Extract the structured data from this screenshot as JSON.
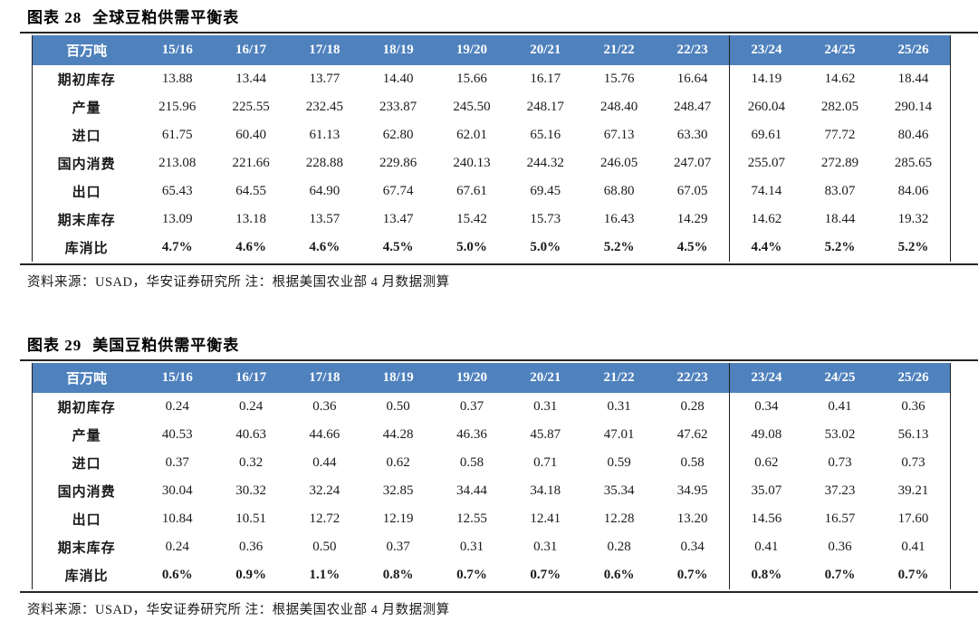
{
  "colors": {
    "header_bg": "#4F81BD",
    "header_text": "#FFFFFF",
    "rule": "#262626",
    "body_text": "#1A1A1A"
  },
  "tables": [
    {
      "figure_label": "图表 28",
      "title": "全球豆粕供需平衡表",
      "unit": "百万吨",
      "columns": [
        "15/16",
        "16/17",
        "17/18",
        "18/19",
        "19/20",
        "20/21",
        "21/22",
        "22/23",
        "23/24",
        "24/25",
        "25/26"
      ],
      "divider_index": 8,
      "rows": [
        {
          "label": "期初库存",
          "emphasis": false,
          "values": [
            "13.88",
            "13.44",
            "13.77",
            "14.40",
            "15.66",
            "16.17",
            "15.76",
            "16.64",
            "14.19",
            "14.62",
            "18.44"
          ]
        },
        {
          "label": "产量",
          "emphasis": false,
          "values": [
            "215.96",
            "225.55",
            "232.45",
            "233.87",
            "245.50",
            "248.17",
            "248.40",
            "248.47",
            "260.04",
            "282.05",
            "290.14"
          ]
        },
        {
          "label": "进口",
          "emphasis": false,
          "values": [
            "61.75",
            "60.40",
            "61.13",
            "62.80",
            "62.01",
            "65.16",
            "67.13",
            "63.30",
            "69.61",
            "77.72",
            "80.46"
          ]
        },
        {
          "label": "国内消费",
          "emphasis": false,
          "values": [
            "213.08",
            "221.66",
            "228.88",
            "229.86",
            "240.13",
            "244.32",
            "246.05",
            "247.07",
            "255.07",
            "272.89",
            "285.65"
          ]
        },
        {
          "label": "出口",
          "emphasis": false,
          "values": [
            "65.43",
            "64.55",
            "64.90",
            "67.74",
            "67.61",
            "69.45",
            "68.80",
            "67.05",
            "74.14",
            "83.07",
            "84.06"
          ]
        },
        {
          "label": "期末库存",
          "emphasis": false,
          "values": [
            "13.09",
            "13.18",
            "13.57",
            "13.47",
            "15.42",
            "15.73",
            "16.43",
            "14.29",
            "14.62",
            "18.44",
            "19.32"
          ]
        },
        {
          "label": "库消比",
          "emphasis": true,
          "values": [
            "4.7%",
            "4.6%",
            "4.6%",
            "4.5%",
            "5.0%",
            "5.0%",
            "5.2%",
            "4.5%",
            "4.4%",
            "5.2%",
            "5.2%"
          ]
        }
      ],
      "source": "资料来源：USAD，华安证券研究所 注：根据美国农业部 4 月数据测算"
    },
    {
      "figure_label": "图表 29",
      "title": "美国豆粕供需平衡表",
      "unit": "百万吨",
      "columns": [
        "15/16",
        "16/17",
        "17/18",
        "18/19",
        "19/20",
        "20/21",
        "21/22",
        "22/23",
        "23/24",
        "24/25",
        "25/26"
      ],
      "divider_index": 8,
      "rows": [
        {
          "label": "期初库存",
          "emphasis": false,
          "values": [
            "0.24",
            "0.24",
            "0.36",
            "0.50",
            "0.37",
            "0.31",
            "0.31",
            "0.28",
            "0.34",
            "0.41",
            "0.36"
          ]
        },
        {
          "label": "产量",
          "emphasis": false,
          "values": [
            "40.53",
            "40.63",
            "44.66",
            "44.28",
            "46.36",
            "45.87",
            "47.01",
            "47.62",
            "49.08",
            "53.02",
            "56.13"
          ]
        },
        {
          "label": "进口",
          "emphasis": false,
          "values": [
            "0.37",
            "0.32",
            "0.44",
            "0.62",
            "0.58",
            "0.71",
            "0.59",
            "0.58",
            "0.62",
            "0.73",
            "0.73"
          ]
        },
        {
          "label": "国内消费",
          "emphasis": false,
          "values": [
            "30.04",
            "30.32",
            "32.24",
            "32.85",
            "34.44",
            "34.18",
            "35.34",
            "34.95",
            "35.07",
            "37.23",
            "39.21"
          ]
        },
        {
          "label": "出口",
          "emphasis": false,
          "values": [
            "10.84",
            "10.51",
            "12.72",
            "12.19",
            "12.55",
            "12.41",
            "12.28",
            "13.20",
            "14.56",
            "16.57",
            "17.60"
          ]
        },
        {
          "label": "期末库存",
          "emphasis": false,
          "values": [
            "0.24",
            "0.36",
            "0.50",
            "0.37",
            "0.31",
            "0.31",
            "0.28",
            "0.34",
            "0.41",
            "0.36",
            "0.41"
          ]
        },
        {
          "label": "库消比",
          "emphasis": true,
          "values": [
            "0.6%",
            "0.9%",
            "1.1%",
            "0.8%",
            "0.7%",
            "0.7%",
            "0.6%",
            "0.7%",
            "0.8%",
            "0.7%",
            "0.7%"
          ]
        }
      ],
      "source": "资料来源：USAD，华安证券研究所 注：根据美国农业部 4 月数据测算"
    }
  ]
}
